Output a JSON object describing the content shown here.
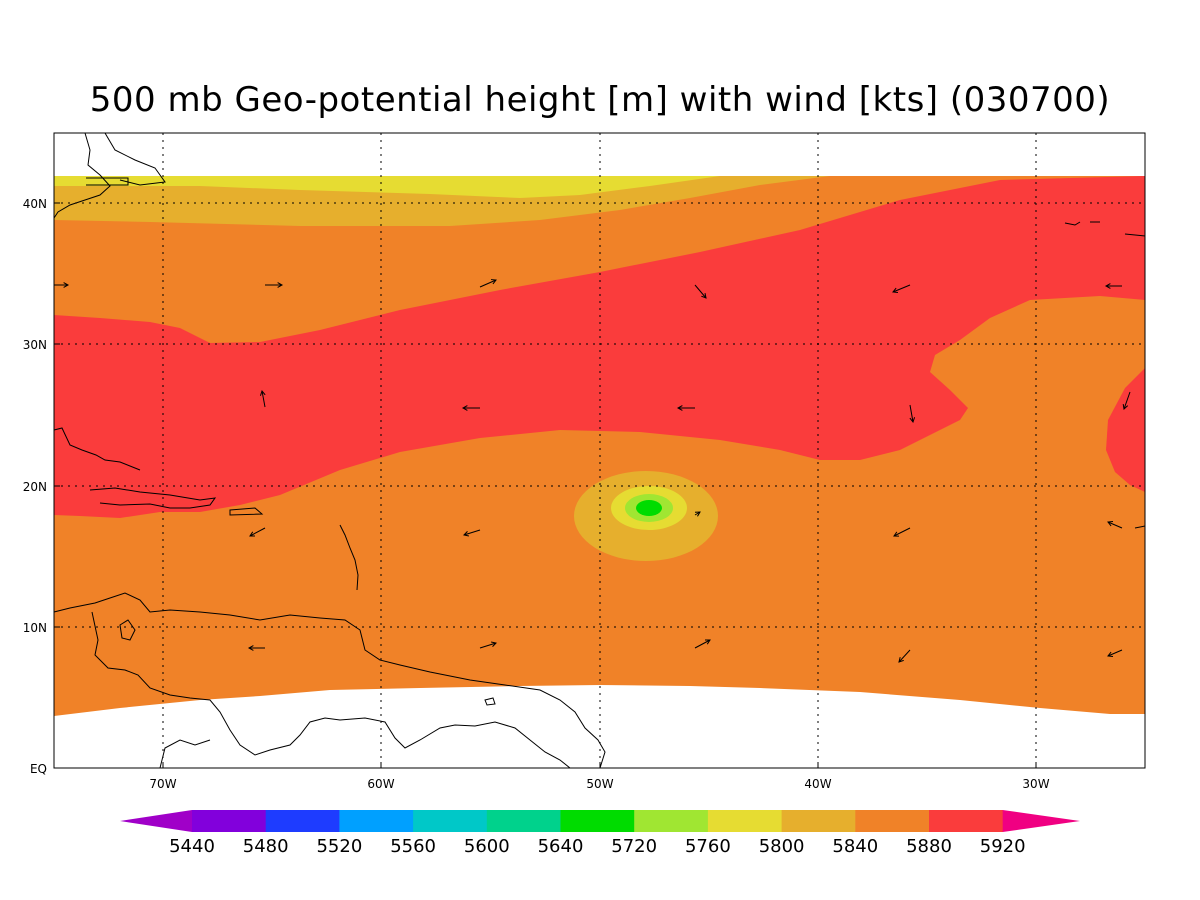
{
  "title": "500 mb Geo-potential height [m] with wind [kts] (030700)",
  "map": {
    "lon_ticks": [
      "70W",
      "60W",
      "50W",
      "40W",
      "30W"
    ],
    "lat_ticks": [
      "40N",
      "30N",
      "20N",
      "10N",
      "EQ"
    ],
    "gridlines": "dotted",
    "fill_colors": {
      "5800": "#e6dc32",
      "5840": "#e6af2d",
      "5880": "#f08228",
      "5920": "#fa3c3c",
      "5760": "#a0e632",
      "5720": "#00dc00",
      "missing": "#ffffff"
    }
  },
  "colorbar": {
    "labels": [
      "5440",
      "5480",
      "5520",
      "5560",
      "5600",
      "5640",
      "5720",
      "5760",
      "5800",
      "5840",
      "5880",
      "5920"
    ],
    "colors": [
      "#a000c8",
      "#8200dc",
      "#1e3cff",
      "#00a0ff",
      "#00c8c8",
      "#00d28c",
      "#00dc00",
      "#a0e632",
      "#e6dc32",
      "#e6af2d",
      "#f08228",
      "#fa3c3c",
      "#f00082"
    ]
  }
}
